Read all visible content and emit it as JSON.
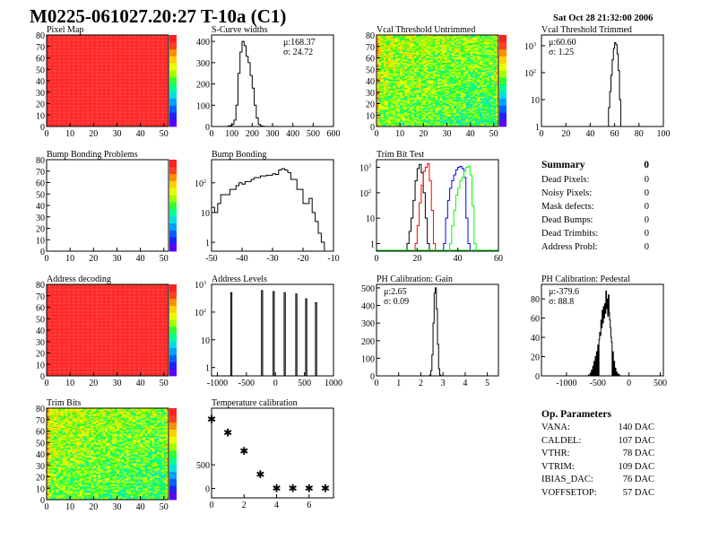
{
  "title": "M0225-061027.20:27 T-10a (C1)",
  "date": "Sat Oct 28 21:32:00 2006",
  "summary": {
    "title": "Summary",
    "total": "0",
    "items": [
      {
        "label": "Dead Pixels:",
        "value": "0"
      },
      {
        "label": "Noisy Pixels:",
        "value": "0"
      },
      {
        "label": "Mask defects:",
        "value": "0"
      },
      {
        "label": "Dead Bumps:",
        "value": "0"
      },
      {
        "label": "Dead Trimbits:",
        "value": "0"
      },
      {
        "label": "Address Probl:",
        "value": "0"
      }
    ]
  },
  "op_parameters": {
    "title": "Op. Parameters",
    "items": [
      {
        "label": "VANA:",
        "value": "140 DAC"
      },
      {
        "label": "CALDEL:",
        "value": "107 DAC"
      },
      {
        "label": "VTHR:",
        "value": "78 DAC"
      },
      {
        "label": "VTRIM:",
        "value": "109 DAC"
      },
      {
        "label": "IBIAS_DAC:",
        "value": "76 DAC"
      },
      {
        "label": "VOFFSETOP:",
        "value": "57 DAC"
      }
    ]
  },
  "colors": {
    "line": "#000000",
    "trim_series": [
      "#000000",
      "#ff0000",
      "#0000ff",
      "#00ff00"
    ]
  },
  "chart_data": [
    {
      "id": "pixel-map",
      "type": "heatmap",
      "title": "Pixel Map",
      "xlim": [
        0,
        52
      ],
      "ylim": [
        0,
        80
      ],
      "xticks": [
        0,
        10,
        20,
        30,
        40,
        50
      ],
      "yticks": [
        0,
        10,
        20,
        30,
        40,
        50,
        60,
        70,
        80
      ],
      "fill": "uniform-max",
      "colorbar": true
    },
    {
      "id": "s-curve-widths",
      "type": "bar",
      "title": "S-Curve widths",
      "xlim": [
        0,
        600
      ],
      "ylim": [
        0,
        430
      ],
      "xticks": [
        0,
        100,
        200,
        300,
        400,
        500,
        600
      ],
      "yticks": [
        0,
        100,
        200,
        300,
        400
      ],
      "bin_width": 10,
      "x": [
        80,
        90,
        100,
        110,
        120,
        130,
        140,
        150,
        160,
        170,
        180,
        190,
        200,
        210,
        220,
        230,
        240,
        250
      ],
      "values": [
        2,
        5,
        10,
        30,
        100,
        250,
        350,
        400,
        380,
        330,
        300,
        240,
        180,
        100,
        40,
        10,
        3,
        1
      ],
      "stats": {
        "mean": "μ:168.37",
        "sigma": "σ: 24.72"
      }
    },
    {
      "id": "vcal-threshold-untrimmed",
      "type": "heatmap",
      "title": "Vcal Threshold Untrimmed",
      "xlim": [
        0,
        52
      ],
      "ylim": [
        0,
        80
      ],
      "xticks": [
        0,
        10,
        20,
        30,
        40,
        50
      ],
      "yticks": [
        0,
        10,
        20,
        30,
        40,
        50,
        60,
        70,
        80
      ],
      "fill": "noise-mid",
      "colorbar": true
    },
    {
      "id": "vcal-threshold-trimmed",
      "type": "bar",
      "title": "Vcal Threshold Trimmed",
      "xlim": [
        0,
        100
      ],
      "ylim": [
        1,
        2500
      ],
      "log_y": true,
      "xticks": [
        0,
        20,
        40,
        60,
        80,
        100
      ],
      "yticks": [
        1,
        10,
        100,
        1000
      ],
      "bin_width": 1,
      "x": [
        54,
        55,
        56,
        57,
        58,
        59,
        60,
        61,
        62,
        63,
        64
      ],
      "values": [
        1,
        5,
        20,
        80,
        300,
        800,
        1300,
        1100,
        500,
        120,
        10
      ],
      "stats": {
        "mean": "μ:60.60",
        "sigma": "σ: 1.25"
      }
    },
    {
      "id": "bump-bonding-problems",
      "type": "heatmap",
      "title": "Bump Bonding Problems",
      "xlim": [
        0,
        52
      ],
      "ylim": [
        0,
        80
      ],
      "xticks": [
        0,
        10,
        20,
        30,
        40,
        50
      ],
      "yticks": [
        0,
        10,
        20,
        30,
        40,
        50,
        60,
        70,
        80
      ],
      "fill": "empty",
      "colorbar": true
    },
    {
      "id": "bump-bonding",
      "type": "bar",
      "title": "Bump Bonding",
      "xlim": [
        -50,
        -10
      ],
      "ylim": [
        0.5,
        600
      ],
      "log_y": true,
      "xticks": [
        -50,
        -40,
        -30,
        -20,
        -10
      ],
      "yticks": [
        1,
        10,
        100
      ],
      "bin_width": 1,
      "x": [
        -50,
        -49,
        -48,
        -47,
        -46,
        -45,
        -44,
        -43,
        -42,
        -41,
        -40,
        -39,
        -38,
        -37,
        -36,
        -35,
        -34,
        -33,
        -32,
        -31,
        -30,
        -29,
        -28,
        -27,
        -26,
        -25,
        -24,
        -23,
        -22,
        -21,
        -20,
        -19,
        -18,
        -17,
        -16,
        -15,
        -14
      ],
      "values": [
        15,
        10,
        20,
        40,
        40,
        40,
        60,
        60,
        80,
        100,
        90,
        110,
        110,
        130,
        150,
        150,
        170,
        170,
        180,
        180,
        200,
        190,
        270,
        300,
        270,
        220,
        130,
        130,
        60,
        60,
        20,
        20,
        30,
        10,
        5,
        2,
        1
      ]
    },
    {
      "id": "trim-bit-test",
      "type": "bar",
      "title": "Trim Bit Test",
      "xlim": [
        0,
        60
      ],
      "ylim": [
        0.5,
        2000
      ],
      "log_y": true,
      "xticks": [
        0,
        20,
        40,
        60
      ],
      "yticks": [
        1,
        10,
        100,
        1000
      ],
      "bin_width": 1,
      "series": [
        {
          "x": [
            15,
            16,
            17,
            18,
            19,
            20,
            21,
            22,
            23,
            24,
            25
          ],
          "values": [
            1,
            3,
            10,
            50,
            300,
            900,
            1300,
            600,
            100,
            10,
            1
          ]
        },
        {
          "x": [
            19,
            20,
            21,
            22,
            23,
            24,
            25,
            26,
            27,
            28
          ],
          "values": [
            1,
            5,
            40,
            200,
            700,
            1000,
            1400,
            300,
            20,
            1
          ]
        },
        {
          "x": [
            33,
            34,
            35,
            36,
            37,
            38,
            39,
            40,
            41,
            42,
            43,
            44,
            45,
            46
          ],
          "values": [
            1,
            10,
            50,
            150,
            300,
            500,
            800,
            1000,
            1100,
            900,
            400,
            10,
            1,
            0.5
          ]
        },
        {
          "x": [
            36,
            37,
            38,
            39,
            40,
            41,
            42,
            43,
            44,
            45,
            46,
            47,
            48
          ],
          "values": [
            1,
            5,
            20,
            80,
            150,
            300,
            400,
            700,
            1000,
            1100,
            500,
            30,
            1
          ]
        }
      ]
    },
    {
      "id": "address-decoding",
      "type": "heatmap",
      "title": "Address decoding",
      "xlim": [
        0,
        52
      ],
      "ylim": [
        0,
        80
      ],
      "xticks": [
        0,
        10,
        20,
        30,
        40,
        50
      ],
      "yticks": [
        0,
        10,
        20,
        30,
        40,
        50,
        60,
        70,
        80
      ],
      "fill": "uniform-max",
      "colorbar": true
    },
    {
      "id": "address-levels",
      "type": "bar",
      "title": "Address Levels",
      "xlim": [
        -1100,
        1000
      ],
      "ylim": [
        0.5,
        1000
      ],
      "log_y": true,
      "xticks": [
        -1000,
        -500,
        0,
        500,
        1000
      ],
      "yticks": [
        1,
        10,
        100,
        1000
      ],
      "bin_width": 20,
      "x": [
        -770,
        -240,
        -40,
        150,
        350,
        520,
        690
      ],
      "values": [
        500,
        600,
        550,
        500,
        450,
        300,
        220
      ]
    },
    {
      "id": "ph-calibration-gain",
      "type": "bar",
      "title": "PH Calibration: Gain",
      "xlim": [
        0,
        5.5
      ],
      "ylim": [
        0,
        520
      ],
      "xticks": [
        0,
        1,
        2,
        3,
        4,
        5
      ],
      "yticks": [
        0,
        100,
        200,
        300,
        400,
        500
      ],
      "bin_width": 0.05,
      "x": [
        2.4,
        2.45,
        2.5,
        2.55,
        2.6,
        2.65,
        2.7,
        2.75,
        2.8,
        2.85
      ],
      "values": [
        5,
        30,
        120,
        300,
        470,
        500,
        380,
        180,
        40,
        5
      ],
      "stats": {
        "mean": "μ:2.65",
        "sigma": "σ: 0.09"
      }
    },
    {
      "id": "ph-calibration-pedestal",
      "type": "bar",
      "title": "PH Calibration: Pedestal",
      "xlim": [
        -1400,
        550
      ],
      "ylim": [
        0,
        95
      ],
      "xticks": [
        -1000,
        -500,
        0,
        500
      ],
      "yticks": [
        0,
        20,
        40,
        60,
        80
      ],
      "bin_width": 10,
      "x": [
        -650,
        -620,
        -600,
        -580,
        -560,
        -540,
        -520,
        -500,
        -480,
        -470,
        -460,
        -450,
        -440,
        -430,
        -420,
        -410,
        -400,
        -390,
        -380,
        -370,
        -360,
        -350,
        -340,
        -330,
        -320,
        -310,
        -300,
        -290,
        -280,
        -260,
        -240,
        -220,
        -200,
        -180,
        -160
      ],
      "values": [
        1,
        3,
        6,
        10,
        15,
        20,
        25,
        32,
        38,
        45,
        42,
        58,
        50,
        68,
        55,
        72,
        60,
        75,
        65,
        88,
        70,
        80,
        62,
        84,
        66,
        58,
        50,
        40,
        35,
        25,
        15,
        8,
        4,
        2,
        1
      ],
      "stats": {
        "mean": "μ:-379.6",
        "sigma": "σ: 88.8"
      }
    },
    {
      "id": "trim-bits",
      "type": "heatmap",
      "title": "Trim Bits",
      "xlim": [
        0,
        52
      ],
      "ylim": [
        0,
        80
      ],
      "xticks": [
        0,
        10,
        20,
        30,
        40,
        50
      ],
      "yticks": [
        0,
        10,
        20,
        30,
        40,
        50,
        60,
        70,
        80
      ],
      "fill": "noise-mid",
      "colorbar": true
    },
    {
      "id": "temperature-calibration",
      "type": "scatter",
      "title": "Temperature calibration",
      "xlim": [
        0,
        7.5
      ],
      "ylim": [
        -200,
        1700
      ],
      "xticks": [
        0,
        2,
        4,
        6
      ],
      "yticks": [
        0,
        500
      ],
      "x": [
        0,
        1,
        2,
        3,
        4,
        5,
        6,
        7
      ],
      "values": [
        1460,
        1180,
        790,
        290,
        0,
        0,
        0,
        0
      ]
    }
  ]
}
